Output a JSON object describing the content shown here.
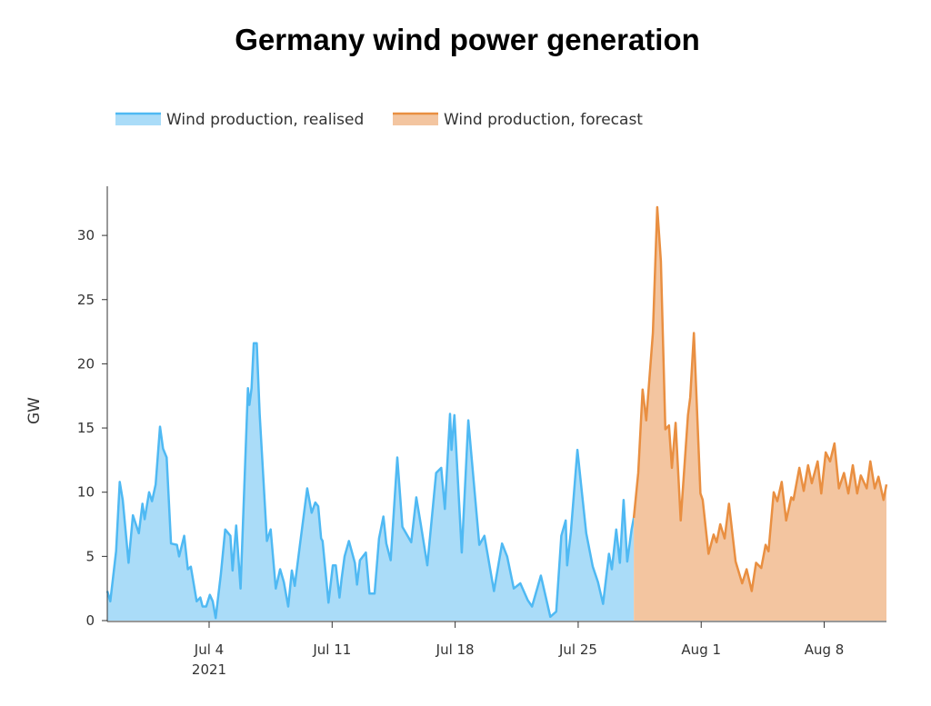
{
  "chart_data": {
    "type": "area",
    "title": "Germany wind power generation",
    "xlabel": "",
    "ylabel": "GW",
    "ylim": [
      0,
      33.8
    ],
    "xlim": [
      "2021-06-28 05:00",
      "2021-08-11 13:00"
    ],
    "grid": false,
    "legend": "top-left",
    "x_ticks": [
      {
        "date": "2021-07-04",
        "label": "Jul 4",
        "sublabel": "2021"
      },
      {
        "date": "2021-07-11",
        "label": "Jul 11"
      },
      {
        "date": "2021-07-18",
        "label": "Jul 18"
      },
      {
        "date": "2021-07-25",
        "label": "Jul 25"
      },
      {
        "date": "2021-08-01",
        "label": "Aug 1"
      },
      {
        "date": "2021-08-08",
        "label": "Aug 8"
      }
    ],
    "y_ticks": [
      0,
      5,
      10,
      15,
      20,
      25,
      30
    ],
    "series": [
      {
        "name": "Wind production, realised",
        "line_color": "#4fb9f3",
        "fill_color": "#aadcf8",
        "x": [
          "2021-06-28 05:00",
          "2021-06-28 09:00",
          "2021-06-28 17:00",
          "2021-06-28 22:00",
          "2021-06-29 02:00",
          "2021-06-29 10:00",
          "2021-06-29 16:00",
          "2021-06-30 00:00",
          "2021-06-30 05:00",
          "2021-06-30 08:00",
          "2021-06-30 14:00",
          "2021-06-30 18:00",
          "2021-06-30 23:00",
          "2021-07-01 05:00",
          "2021-07-01 09:00",
          "2021-07-01 14:00",
          "2021-07-01 20:00",
          "2021-07-02 04:00",
          "2021-07-02 07:00",
          "2021-07-02 14:00",
          "2021-07-02 19:00",
          "2021-07-02 23:00",
          "2021-07-03 07:00",
          "2021-07-03 12:00",
          "2021-07-03 15:00",
          "2021-07-03 20:00",
          "2021-07-04 01:00",
          "2021-07-04 05:00",
          "2021-07-04 09:00",
          "2021-07-04 16:00",
          "2021-07-04 22:00",
          "2021-07-05 05:00",
          "2021-07-05 08:00",
          "2021-07-05 13:00",
          "2021-07-05 19:00",
          "2021-07-06 05:00",
          "2021-07-06 07:00",
          "2021-07-06 10:00",
          "2021-07-06 13:00",
          "2021-07-06 17:00",
          "2021-07-06 21:00",
          "2021-07-07 07:00",
          "2021-07-07 12:00",
          "2021-07-07 19:00",
          "2021-07-08 01:00",
          "2021-07-08 06:00",
          "2021-07-08 12:00",
          "2021-07-08 17:00",
          "2021-07-08 21:00",
          "2021-07-09 04:00",
          "2021-07-09 14:00",
          "2021-07-09 20:00",
          "2021-07-10 01:00",
          "2021-07-10 05:00",
          "2021-07-10 09:00",
          "2021-07-10 11:00",
          "2021-07-10 19:00",
          "2021-07-11 01:00",
          "2021-07-11 05:00",
          "2021-07-11 10:00",
          "2021-07-11 13:00",
          "2021-07-11 17:00",
          "2021-07-11 23:00",
          "2021-07-12 07:00",
          "2021-07-12 10:00",
          "2021-07-12 14:00",
          "2021-07-12 22:00",
          "2021-07-13 03:00",
          "2021-07-13 10:00",
          "2021-07-13 16:00",
          "2021-07-13 22:00",
          "2021-07-14 02:00",
          "2021-07-14 08:00",
          "2021-07-14 17:00",
          "2021-07-15 00:00",
          "2021-07-15 12:00",
          "2021-07-15 19:00",
          "2021-07-16 01:00",
          "2021-07-16 10:00",
          "2021-07-16 22:00",
          "2021-07-17 05:00",
          "2021-07-17 10:00",
          "2021-07-17 17:00",
          "2021-07-17 19:00",
          "2021-07-17 23:00",
          "2021-07-18 09:00",
          "2021-07-18 18:00",
          "2021-07-19 09:00",
          "2021-07-19 16:00",
          "2021-07-20 05:00",
          "2021-07-20 16:00",
          "2021-07-20 23:00",
          "2021-07-21 08:00",
          "2021-07-21 17:00",
          "2021-07-22 03:00",
          "2021-07-22 09:00",
          "2021-07-22 21:00",
          "2021-07-23 10:00",
          "2021-07-23 18:00",
          "2021-07-24 01:00",
          "2021-07-24 07:00",
          "2021-07-24 09:00",
          "2021-07-24 14:00",
          "2021-07-24 23:00",
          "2021-07-25 05:00",
          "2021-07-25 11:00",
          "2021-07-25 20:00",
          "2021-07-26 03:00",
          "2021-07-26 10:00",
          "2021-07-26 18:00",
          "2021-07-26 22:00",
          "2021-07-27 04:00",
          "2021-07-27 09:00",
          "2021-07-27 14:00",
          "2021-07-27 19:00",
          "2021-07-28 01:00",
          "2021-07-28 04:00"
        ],
        "values": [
          2.3,
          1.5,
          5.4,
          10.8,
          9.4,
          4.5,
          8.2,
          6.8,
          9.1,
          7.9,
          10.0,
          9.3,
          10.6,
          15.1,
          13.4,
          12.7,
          6.0,
          5.9,
          5.0,
          6.6,
          4.0,
          4.2,
          1.5,
          1.8,
          1.1,
          1.1,
          2.0,
          1.5,
          0.2,
          3.6,
          7.1,
          6.6,
          3.9,
          7.4,
          2.5,
          18.1,
          16.8,
          18.1,
          21.6,
          21.6,
          16.1,
          6.2,
          7.1,
          2.5,
          4.0,
          3.0,
          1.1,
          3.9,
          2.7,
          5.9,
          10.3,
          8.4,
          9.2,
          8.9,
          6.4,
          6.2,
          1.4,
          4.3,
          4.3,
          1.8,
          3.3,
          5.0,
          6.2,
          4.5,
          2.8,
          4.7,
          5.3,
          2.1,
          2.1,
          6.4,
          8.1,
          6.0,
          4.7,
          12.7,
          7.3,
          6.1,
          9.6,
          7.5,
          4.3,
          11.5,
          11.9,
          8.7,
          16.1,
          13.3,
          16.0,
          5.3,
          15.6,
          5.9,
          6.6,
          2.3,
          6.0,
          5.0,
          2.5,
          2.9,
          1.6,
          1.1,
          3.5,
          0.3,
          0.7,
          6.6,
          7.8,
          4.3,
          6.9,
          13.3,
          10.0,
          6.8,
          4.2,
          3.0,
          1.3,
          5.2,
          4.0,
          7.1,
          4.5,
          9.4,
          4.6,
          7.1,
          8.0
        ]
      },
      {
        "name": "Wind production, forecast",
        "line_color": "#e98f41",
        "fill_color": "#f3c5a0",
        "x": [
          "2021-07-28 04:00",
          "2021-07-28 10:00",
          "2021-07-28 16:00",
          "2021-07-28 21:00",
          "2021-07-29 06:00",
          "2021-07-29 12:00",
          "2021-07-29 17:00",
          "2021-07-29 23:00",
          "2021-07-30 04:00",
          "2021-07-30 08:00",
          "2021-07-30 13:00",
          "2021-07-30 20:00",
          "2021-07-31 06:00",
          "2021-07-31 09:00",
          "2021-07-31 14:00",
          "2021-07-31 23:00",
          "2021-08-01 02:00",
          "2021-08-01 10:00",
          "2021-08-01 17:00",
          "2021-08-01 21:00",
          "2021-08-02 02:00",
          "2021-08-02 08:00",
          "2021-08-02 14:00",
          "2021-08-02 23:00",
          "2021-08-03 08:00",
          "2021-08-03 14:00",
          "2021-08-03 21:00",
          "2021-08-04 03:00",
          "2021-08-04 10:00",
          "2021-08-04 16:00",
          "2021-08-04 20:00",
          "2021-08-05 03:00",
          "2021-08-05 08:00",
          "2021-08-05 14:00",
          "2021-08-05 20:00",
          "2021-08-06 03:00",
          "2021-08-06 06:00",
          "2021-08-06 14:00",
          "2021-08-06 20:00",
          "2021-08-07 02:00",
          "2021-08-07 07:00",
          "2021-08-07 15:00",
          "2021-08-07 20:00",
          "2021-08-08 02:00",
          "2021-08-08 08:00",
          "2021-08-08 14:00",
          "2021-08-08 20:00",
          "2021-08-09 03:00",
          "2021-08-09 09:00",
          "2021-08-09 15:00",
          "2021-08-09 21:00",
          "2021-08-10 02:00",
          "2021-08-10 10:00",
          "2021-08-10 15:00",
          "2021-08-10 21:00",
          "2021-08-11 02:00",
          "2021-08-11 09:00",
          "2021-08-11 13:00"
        ],
        "values": [
          8.0,
          11.5,
          18.0,
          15.6,
          22.4,
          32.2,
          28.0,
          14.9,
          15.2,
          11.9,
          15.4,
          7.8,
          16.0,
          17.4,
          22.4,
          9.9,
          9.4,
          5.2,
          6.7,
          6.1,
          7.5,
          6.4,
          9.1,
          4.6,
          2.9,
          4.0,
          2.3,
          4.5,
          4.1,
          5.9,
          5.4,
          10.0,
          9.3,
          10.8,
          7.8,
          9.6,
          9.4,
          11.9,
          10.1,
          12.1,
          10.7,
          12.4,
          9.9,
          13.1,
          12.4,
          13.8,
          10.3,
          11.5,
          9.9,
          12.1,
          9.9,
          11.3,
          10.3,
          12.4,
          10.3,
          11.2,
          9.4,
          10.6
        ]
      }
    ]
  }
}
